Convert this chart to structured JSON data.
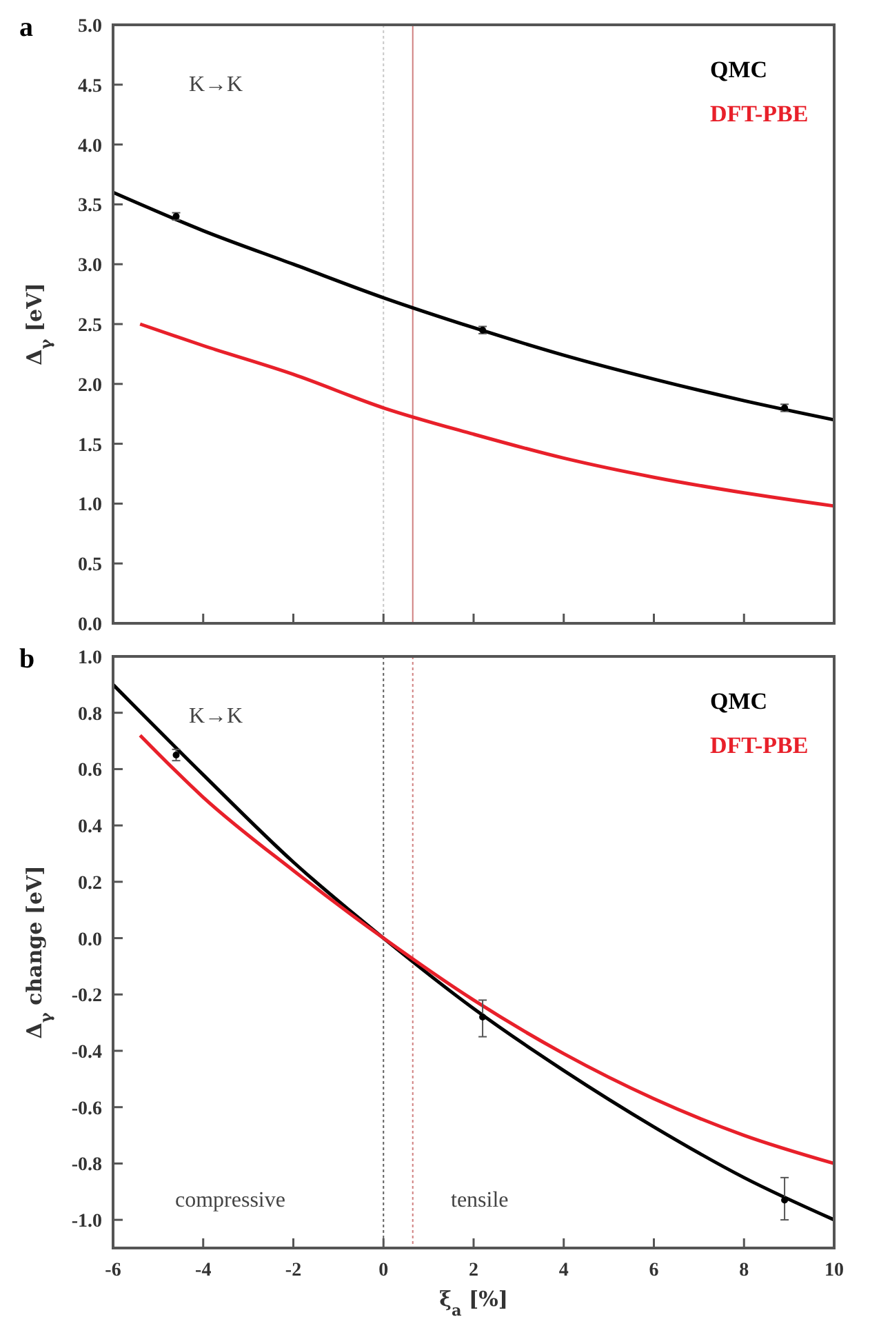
{
  "chart_data": [
    {
      "type": "line",
      "title": "a",
      "ylabel": "Δ$_{γ}$ [eV]",
      "xlim": [
        -6,
        10
      ],
      "xticks": [
        -6,
        -4,
        -2,
        0,
        2,
        4,
        6,
        8,
        10
      ],
      "ylim": [
        0,
        5
      ],
      "yticks": [
        {
          "value": 0,
          "label": "0.0"
        },
        {
          "value": 0.5,
          "label": "0.5"
        },
        {
          "value": 1,
          "label": "1.0"
        },
        {
          "value": 1.5,
          "label": "1.5"
        },
        {
          "value": 2,
          "label": "2.0"
        },
        {
          "value": 2.5,
          "label": "2.5"
        },
        {
          "value": 3,
          "label": "3.0"
        },
        {
          "value": 3.5,
          "label": "3.5"
        },
        {
          "value": 4,
          "label": "4.0"
        },
        {
          "value": 4.5,
          "label": "4.5"
        },
        {
          "value": 5,
          "label": "5.0"
        }
      ],
      "tick_labels": "y",
      "legend": "top right",
      "annotations": [
        "K→K"
      ],
      "ref_lines": [
        {
          "axis": "x",
          "value": 0,
          "color": "#c8c8c8",
          "line_style": "dotted"
        },
        {
          "axis": "x",
          "value": 0.65,
          "color": "#d08080",
          "line_style": "solid"
        }
      ],
      "series": [
        {
          "name": "QMC",
          "color": "#000000",
          "type": "line",
          "x": [
            -6,
            -4,
            -2,
            0,
            2,
            4,
            6,
            8,
            10
          ],
          "values": [
            3.6,
            3.28,
            3.0,
            2.72,
            2.47,
            2.24,
            2.04,
            1.86,
            1.7
          ]
        },
        {
          "name": "DFT-PBE",
          "color": "#e8202a",
          "type": "line",
          "x": [
            -5.4,
            -4,
            -2,
            0,
            2,
            4,
            6,
            8,
            10
          ],
          "values": [
            2.5,
            2.32,
            2.08,
            1.8,
            1.58,
            1.38,
            1.22,
            1.09,
            0.98
          ]
        },
        {
          "color": "#000000",
          "type": "scatter",
          "marker": "circle",
          "x": [
            -4.6,
            2.2,
            8.9
          ],
          "values": [
            3.4,
            2.45,
            1.8
          ],
          "errors": [
            0.03,
            0.03,
            0.03
          ]
        }
      ]
    },
    {
      "type": "line",
      "title": "b",
      "xlabel": "ξ$_{a}$ [%]",
      "ylabel": "Δ$_{γ}$ change [eV]",
      "xlim": [
        -6,
        10
      ],
      "xticks": [
        -6,
        -4,
        -2,
        0,
        2,
        4,
        6,
        8,
        10
      ],
      "ylim": [
        -1.1,
        1.0
      ],
      "yticks": [
        {
          "value": -1,
          "label": "-1.0"
        },
        {
          "value": -0.8,
          "label": "-0.8"
        },
        {
          "value": -0.6,
          "label": "-0.6"
        },
        {
          "value": -0.4,
          "label": "-0.4"
        },
        {
          "value": -0.2,
          "label": "-0.2"
        },
        {
          "value": 0,
          "label": "0.0"
        },
        {
          "value": 0.2,
          "label": "0.2"
        },
        {
          "value": 0.4,
          "label": "0.4"
        },
        {
          "value": 0.6,
          "label": "0.6"
        },
        {
          "value": 0.8,
          "label": "0.8"
        },
        {
          "value": 1,
          "label": "1.0"
        }
      ],
      "legend": "top right",
      "annotations": [
        "K→K",
        "compressive",
        "tensile"
      ],
      "ref_lines": [
        {
          "axis": "x",
          "value": 0,
          "color": "#606060",
          "line_style": "dotted"
        },
        {
          "axis": "x",
          "value": 0.65,
          "color": "#d08080",
          "line_style": "dotted"
        }
      ],
      "series": [
        {
          "name": "QMC",
          "color": "#000000",
          "type": "line",
          "x": [
            -6,
            -4,
            -2,
            0,
            2,
            4,
            6,
            8,
            10
          ],
          "values": [
            0.9,
            0.58,
            0.27,
            0,
            -0.25,
            -0.47,
            -0.67,
            -0.85,
            -1.0
          ]
        },
        {
          "name": "DFT-PBE",
          "color": "#e8202a",
          "type": "line",
          "x": [
            -5.4,
            -4,
            -2,
            0,
            2,
            4,
            6,
            8,
            10
          ],
          "values": [
            0.72,
            0.5,
            0.24,
            0,
            -0.22,
            -0.41,
            -0.57,
            -0.7,
            -0.8
          ]
        },
        {
          "color": "#000000",
          "type": "scatter",
          "marker": "circle",
          "x": [
            -4.6,
            2.2,
            8.9
          ],
          "values": [
            0.65,
            -0.28,
            -0.93
          ],
          "errors": [
            0.02,
            [
              -0.35,
              -0.22
            ],
            [
              -1.0,
              -0.85
            ]
          ]
        }
      ]
    }
  ]
}
